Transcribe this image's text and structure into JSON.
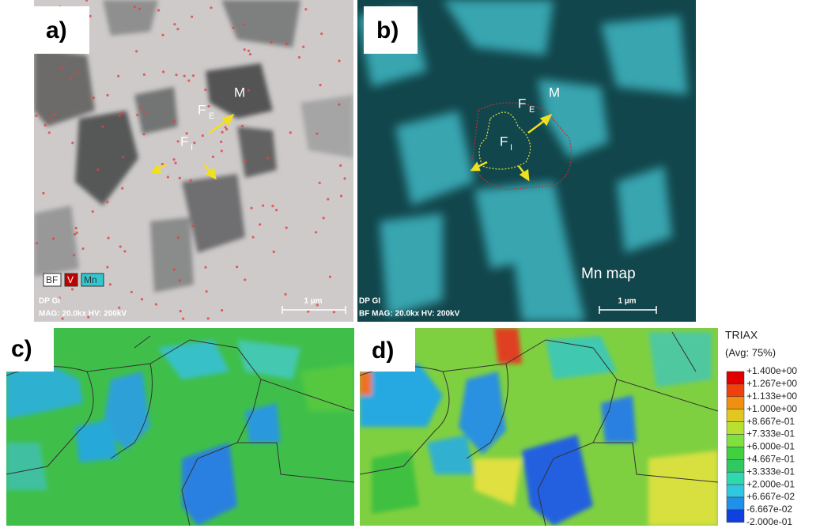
{
  "panels": {
    "a": {
      "label": "a)",
      "legend": [
        "BF",
        "V",
        "Mn"
      ],
      "info": [
        "DP GI",
        "MAG: 20.0kx  HV: 200kV"
      ],
      "scale": "1 µm",
      "marks": [
        {
          "main": "M"
        },
        {
          "main": "F",
          "sub": "E"
        },
        {
          "main": "F",
          "sub": "I"
        }
      ]
    },
    "b": {
      "label": "b)",
      "info": [
        "DP GI",
        "BF  MAG: 20.0kx  HV: 200kV"
      ],
      "scale": "1 µm",
      "map": "Mn map",
      "marks": [
        {
          "main": "M"
        },
        {
          "main": "F",
          "sub": "E"
        },
        {
          "main": "F",
          "sub": "I"
        }
      ]
    },
    "c": {
      "label": "c)"
    },
    "d": {
      "label": "d)"
    }
  },
  "colorbar": {
    "title": "TRIAX",
    "subtitle": "(Avg: 75%)",
    "labels": [
      "+1.400e+00",
      "+1.267e+00",
      "+1.133e+00",
      "+1.000e+00",
      "+8.667e-01",
      "+7.333e-01",
      "+6.000e-01",
      "+4.667e-01",
      "+3.333e-01",
      "+2.000e-01",
      "+6.667e-02",
      "-6.667e-02",
      "-2.000e-01"
    ]
  }
}
